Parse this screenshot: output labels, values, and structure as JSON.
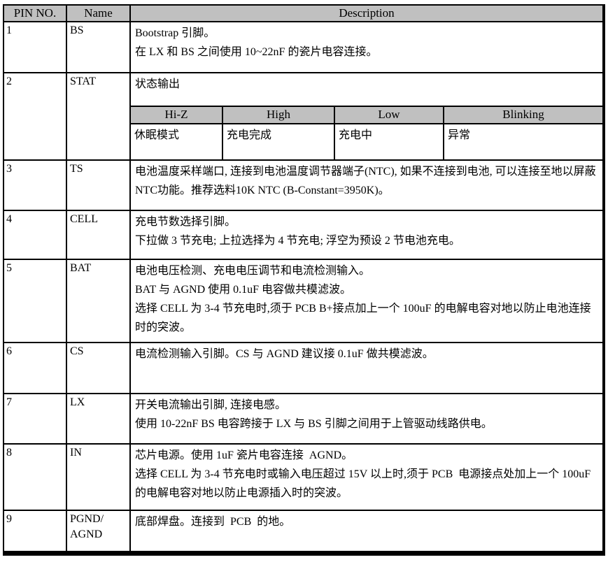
{
  "colors": {
    "header_bg": "#c0c0c0",
    "border": "#000000",
    "text": "#000000",
    "page_bg": "#ffffff"
  },
  "table": {
    "headers": [
      "PIN NO.",
      "Name",
      "Description"
    ],
    "rows": [
      {
        "pin": "1",
        "name_lines": [
          "BS"
        ],
        "desc_lines": [
          "Bootstrap 引脚。",
          "在 LX 和 BS 之间使用 10~22nF 的瓷片电容连接。"
        ]
      },
      {
        "pin": "2",
        "name_lines": [
          "STAT"
        ],
        "desc_lines": [
          "状态输出"
        ],
        "subtable": {
          "headers": [
            "Hi-Z",
            "High",
            "Low",
            "Blinking"
          ],
          "values": [
            "休眠模式",
            "充电完成",
            "充电中",
            "异常"
          ]
        }
      },
      {
        "pin": "3",
        "name_lines": [
          "TS"
        ],
        "desc_lines": [
          "电池温度采样端口, 连接到电池温度调节器端子(NTC), 如果不连接到电池, 可以连接至地以屏蔽NTC功能。推荐选料10K NTC (B-Constant=3950K)。"
        ]
      },
      {
        "pin": "4",
        "name_lines": [
          "CELL"
        ],
        "desc_lines": [
          "充电节数选择引脚。",
          "下拉做 3 节充电; 上拉选择为 4 节充电; 浮空为预设 2 节电池充电。"
        ]
      },
      {
        "pin": "5",
        "name_lines": [
          "BAT"
        ],
        "desc_lines": [
          "电池电压检测、充电电压调节和电流检测输入。",
          "BAT 与 AGND 使用 0.1uF 电容做共模滤波。",
          "选择 CELL 为 3-4 节充电时,须于 PCB B+接点加上一个 100uF 的电解电容对地以防止电池连接时的突波。"
        ]
      },
      {
        "pin": "6",
        "name_lines": [
          "CS"
        ],
        "desc_lines": [
          "电流检测输入引脚。CS 与 AGND 建议接 0.1uF 做共模滤波。"
        ]
      },
      {
        "pin": "7",
        "name_lines": [
          "LX"
        ],
        "desc_lines": [
          "开关电流输出引脚, 连接电感。",
          "使用 10-22nF BS 电容跨接于 LX 与 BS 引脚之间用于上管驱动线路供电。"
        ]
      },
      {
        "pin": "8",
        "name_lines": [
          "IN"
        ],
        "desc_lines": [
          "芯片电源。使用 1uF 瓷片电容连接  AGND。",
          "选择 CELL 为 3-4 节充电时或输入电压超过 15V 以上时,须于 PCB  电源接点处加上一个 100uF 的电解电容对地以防止电源插入时的突波。"
        ]
      },
      {
        "pin": "9",
        "name_lines": [
          "PGND/",
          "AGND"
        ],
        "desc_lines": [
          "底部焊盘。连接到  PCB  的地。"
        ]
      }
    ]
  }
}
